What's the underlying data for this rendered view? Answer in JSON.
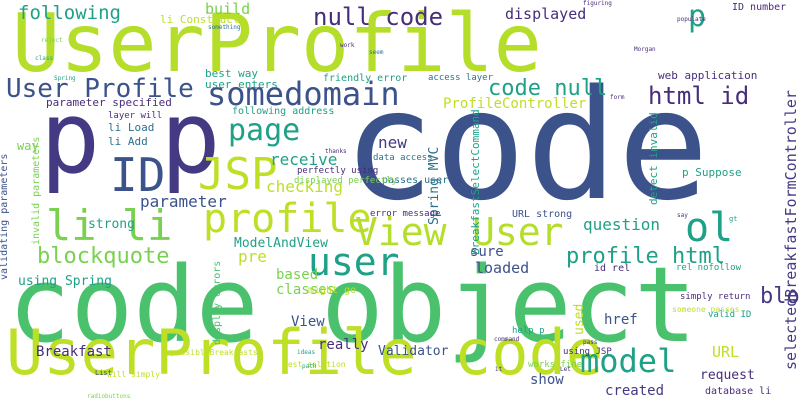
{
  "palette": {
    "lime": "#b5de2b",
    "green": "#4ac16d",
    "teal": "#1fa187",
    "blue": "#2c728e",
    "navy": "#3b528b",
    "indigo": "#443a83",
    "purple": "#472d7b",
    "darkpurple": "#440154",
    "yellowgreen": "#7ad151",
    "yellow": "#bddf26"
  },
  "words": [
    {
      "text": "code"
    },
    {
      "text": "UserProfile"
    },
    {
      "text": "code object"
    },
    {
      "text": "UserProfile code"
    },
    {
      "text": "p p"
    },
    {
      "text": "ID"
    },
    {
      "text": "JSP"
    },
    {
      "text": "li li"
    },
    {
      "text": "profile"
    },
    {
      "text": "View"
    },
    {
      "text": "User"
    },
    {
      "text": "user"
    },
    {
      "text": "ol"
    },
    {
      "text": "somedomain"
    },
    {
      "text": "page"
    },
    {
      "text": "User Profile"
    },
    {
      "text": "code null"
    },
    {
      "text": "html id"
    },
    {
      "text": "null code"
    },
    {
      "text": "p"
    },
    {
      "text": "following"
    },
    {
      "text": "build"
    },
    {
      "text": "displayed"
    },
    {
      "text": "model"
    },
    {
      "text": "blockquote p"
    },
    {
      "text": "blockquote"
    },
    {
      "text": "profile html"
    },
    {
      "text": "receive"
    },
    {
      "text": "checking"
    },
    {
      "text": "parameter"
    },
    {
      "text": "ModelAndView"
    },
    {
      "text": "pre"
    },
    {
      "text": "new"
    },
    {
      "text": "question"
    },
    {
      "text": "ProfileController"
    },
    {
      "text": "selectedBreakfastFormController"
    },
    {
      "text": "Spring MVC"
    },
    {
      "text": "using Spring"
    },
    {
      "text": "strong"
    },
    {
      "text": "way"
    },
    {
      "text": "validating parameters"
    },
    {
      "text": "invalid parameters"
    },
    {
      "text": "parameter specified"
    },
    {
      "text": "user enters"
    },
    {
      "text": "li Construct"
    },
    {
      "text": "best way"
    },
    {
      "text": "following address"
    },
    {
      "text": "friendly error"
    },
    {
      "text": "access layer"
    },
    {
      "text": "web application"
    },
    {
      "text": "ID number"
    },
    {
      "text": "layer will"
    },
    {
      "text": "li Load"
    },
    {
      "text": "li Add"
    },
    {
      "text": "perfectly using"
    },
    {
      "text": "data access"
    },
    {
      "text": "passes user"
    },
    {
      "text": "detect invalid"
    },
    {
      "text": "p Suppose"
    },
    {
      "text": "displayed perfectly"
    },
    {
      "text": "error message"
    },
    {
      "text": "URL strong"
    },
    {
      "text": "id rel"
    },
    {
      "text": "rel nofollow"
    },
    {
      "text": "sure"
    },
    {
      "text": "loaded"
    },
    {
      "text": "based"
    },
    {
      "text": "classes"
    },
    {
      "text": "might go"
    },
    {
      "text": "View"
    },
    {
      "text": "really"
    },
    {
      "text": "href"
    },
    {
      "text": "used"
    },
    {
      "text": "Validator"
    },
    {
      "text": "Breakfast"
    },
    {
      "text": "URL"
    },
    {
      "text": "request"
    },
    {
      "text": "show"
    },
    {
      "text": "created"
    },
    {
      "text": "valid ID"
    },
    {
      "text": "simply return"
    },
    {
      "text": "someone passes"
    },
    {
      "text": "help p"
    },
    {
      "text": "display errors"
    },
    {
      "text": "possibleBreakfasts"
    },
    {
      "text": "best solution"
    },
    {
      "text": "using JSP"
    },
    {
      "text": "works fine"
    },
    {
      "text": "database li"
    },
    {
      "text": "BreakfastSelectCommand"
    },
    {
      "text": "will simply"
    },
    {
      "text": "List"
    },
    {
      "text": "figuring"
    },
    {
      "text": "populate"
    },
    {
      "text": "something"
    },
    {
      "text": "work"
    },
    {
      "text": "seem"
    },
    {
      "text": "Morgan"
    },
    {
      "text": "thanks"
    },
    {
      "text": "reject"
    },
    {
      "text": "class"
    },
    {
      "text": "Spring"
    },
    {
      "text": "Let"
    },
    {
      "text": "command"
    },
    {
      "text": "ideas"
    },
    {
      "text": "path"
    },
    {
      "text": "form"
    },
    {
      "text": "pass"
    },
    {
      "text": "gt"
    },
    {
      "text": "say"
    },
    {
      "text": "radiobuttons"
    },
    {
      "text": "it"
    }
  ]
}
